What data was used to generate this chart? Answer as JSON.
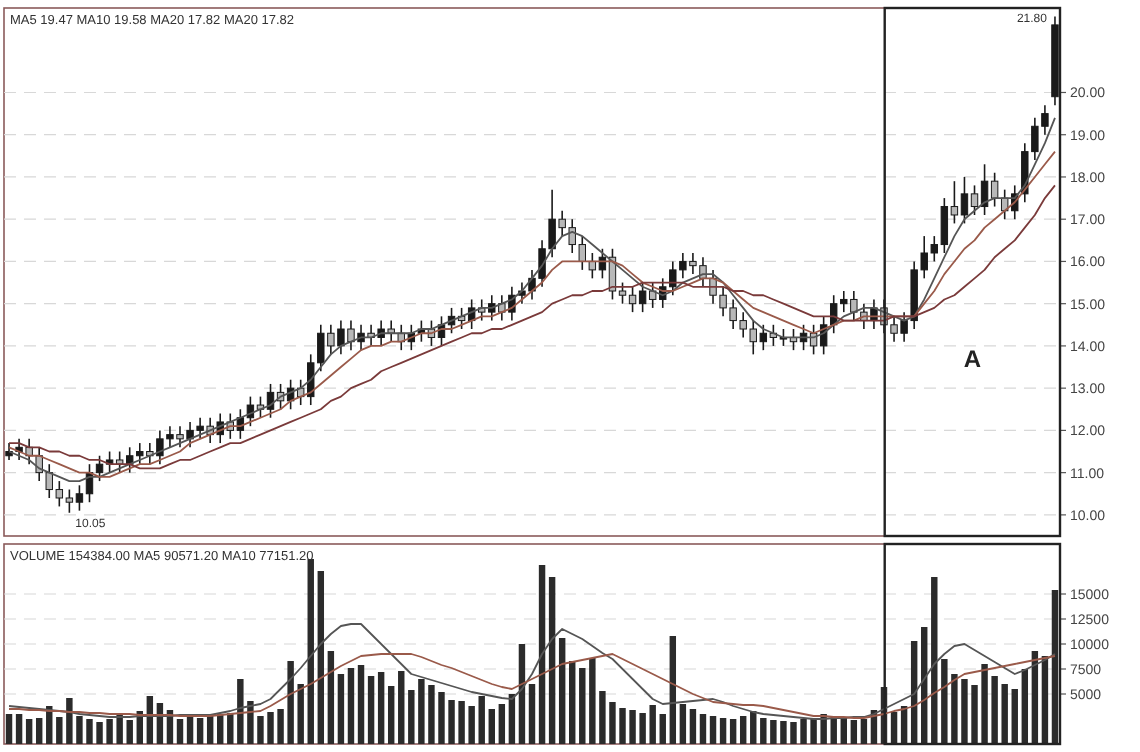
{
  "chart_data": [
    {
      "type": "candlestick",
      "title": "MA5 19.47  MA10 19.58  MA20 17.82  MA20 17.82",
      "tick_labels": "y",
      "grid": "y",
      "categories": [
        null,
        null,
        null,
        null,
        null,
        null,
        null,
        null,
        null,
        null,
        null,
        null,
        null,
        null,
        null,
        null,
        null,
        null,
        null,
        null,
        null,
        null,
        null,
        null,
        null,
        null,
        null,
        null,
        null,
        null,
        null,
        null,
        null,
        null,
        null,
        null,
        null,
        null,
        null,
        null,
        null,
        null,
        null,
        null,
        null,
        null,
        null,
        null,
        null,
        null,
        null,
        null,
        null,
        null,
        null,
        null,
        null,
        null,
        null,
        null,
        null,
        null,
        null,
        null,
        null,
        null,
        null,
        null,
        null,
        null,
        null,
        null,
        null,
        null,
        null,
        null,
        null,
        null,
        null,
        null,
        null,
        null,
        null,
        null,
        null,
        null,
        null,
        null,
        null,
        null,
        null,
        null,
        null,
        null,
        null,
        null,
        null,
        null,
        null,
        null,
        null,
        null,
        null,
        null,
        null
      ],
      "ylim": [
        9.5,
        22.0
      ],
      "yticks": [
        {
          "value": 10,
          "label": "10.00"
        },
        {
          "value": 11,
          "label": "11.00"
        },
        {
          "value": 12,
          "label": "12.00"
        },
        {
          "value": 13,
          "label": "13.00"
        },
        {
          "value": 14,
          "label": "14.00"
        },
        {
          "value": 15,
          "label": "15.00"
        },
        {
          "value": 16,
          "label": "16.00"
        },
        {
          "value": 17,
          "label": "17.00"
        },
        {
          "value": 18,
          "label": "18.00"
        },
        {
          "value": 19,
          "label": "19.00"
        },
        {
          "value": 20,
          "label": "20.00"
        }
      ],
      "ohlc": [
        [
          11.4,
          11.7,
          11.3,
          11.5
        ],
        [
          11.5,
          11.8,
          11.3,
          11.6
        ],
        [
          11.6,
          11.8,
          11.2,
          11.4
        ],
        [
          11.4,
          11.6,
          10.8,
          11.0
        ],
        [
          11.0,
          11.2,
          10.4,
          10.6
        ],
        [
          10.6,
          10.8,
          10.2,
          10.4
        ],
        [
          10.4,
          10.6,
          10.05,
          10.3
        ],
        [
          10.3,
          10.7,
          10.1,
          10.5
        ],
        [
          10.5,
          11.2,
          10.3,
          11.0
        ],
        [
          11.0,
          11.4,
          10.8,
          11.2
        ],
        [
          11.2,
          11.5,
          11.0,
          11.3
        ],
        [
          11.3,
          11.5,
          11.0,
          11.2
        ],
        [
          11.2,
          11.6,
          11.0,
          11.4
        ],
        [
          11.4,
          11.7,
          11.2,
          11.5
        ],
        [
          11.5,
          11.7,
          11.2,
          11.4
        ],
        [
          11.4,
          12.0,
          11.2,
          11.8
        ],
        [
          11.8,
          12.1,
          11.6,
          11.9
        ],
        [
          11.9,
          12.1,
          11.6,
          11.8
        ],
        [
          11.8,
          12.2,
          11.6,
          12.0
        ],
        [
          12.0,
          12.3,
          11.8,
          12.1
        ],
        [
          12.1,
          12.3,
          11.7,
          11.9
        ],
        [
          11.9,
          12.4,
          11.7,
          12.2
        ],
        [
          12.2,
          12.4,
          11.8,
          12.0
        ],
        [
          12.0,
          12.5,
          11.8,
          12.3
        ],
        [
          12.3,
          12.8,
          12.1,
          12.6
        ],
        [
          12.6,
          12.8,
          12.3,
          12.5
        ],
        [
          12.5,
          13.1,
          12.3,
          12.9
        ],
        [
          12.9,
          13.1,
          12.5,
          12.7
        ],
        [
          12.7,
          13.2,
          12.5,
          13.0
        ],
        [
          13.0,
          13.2,
          12.6,
          12.8
        ],
        [
          12.8,
          13.8,
          12.6,
          13.6
        ],
        [
          13.6,
          14.5,
          13.4,
          14.3
        ],
        [
          14.3,
          14.5,
          13.8,
          14.0
        ],
        [
          14.0,
          14.6,
          13.8,
          14.4
        ],
        [
          14.4,
          14.6,
          13.9,
          14.1
        ],
        [
          14.1,
          14.5,
          13.9,
          14.3
        ],
        [
          14.3,
          14.5,
          14.0,
          14.2
        ],
        [
          14.2,
          14.6,
          14.0,
          14.4
        ],
        [
          14.4,
          14.6,
          14.1,
          14.3
        ],
        [
          14.3,
          14.5,
          13.9,
          14.1
        ],
        [
          14.1,
          14.5,
          13.9,
          14.3
        ],
        [
          14.3,
          14.6,
          14.1,
          14.4
        ],
        [
          14.4,
          14.6,
          14.0,
          14.2
        ],
        [
          14.2,
          14.7,
          14.0,
          14.5
        ],
        [
          14.5,
          14.9,
          14.3,
          14.7
        ],
        [
          14.7,
          14.9,
          14.4,
          14.6
        ],
        [
          14.6,
          15.1,
          14.4,
          14.9
        ],
        [
          14.9,
          15.1,
          14.6,
          14.8
        ],
        [
          14.8,
          15.2,
          14.6,
          15.0
        ],
        [
          15.0,
          15.2,
          14.6,
          14.8
        ],
        [
          14.8,
          15.4,
          14.6,
          15.2
        ],
        [
          15.2,
          15.5,
          15.0,
          15.3
        ],
        [
          15.3,
          15.8,
          15.1,
          15.6
        ],
        [
          15.6,
          16.5,
          15.4,
          16.3
        ],
        [
          16.3,
          17.7,
          16.1,
          17.0
        ],
        [
          17.0,
          17.2,
          16.6,
          16.8
        ],
        [
          16.8,
          17.0,
          16.2,
          16.4
        ],
        [
          16.4,
          16.6,
          15.8,
          16.0
        ],
        [
          16.0,
          16.2,
          15.6,
          15.8
        ],
        [
          15.8,
          16.3,
          15.6,
          16.1
        ],
        [
          16.1,
          16.3,
          15.1,
          15.3
        ],
        [
          15.3,
          15.5,
          15.0,
          15.2
        ],
        [
          15.2,
          15.4,
          14.8,
          15.0
        ],
        [
          15.0,
          15.5,
          14.8,
          15.3
        ],
        [
          15.3,
          15.5,
          14.9,
          15.1
        ],
        [
          15.1,
          15.6,
          14.9,
          15.4
        ],
        [
          15.4,
          16.0,
          15.2,
          15.8
        ],
        [
          15.8,
          16.2,
          15.6,
          16.0
        ],
        [
          16.0,
          16.2,
          15.7,
          15.9
        ],
        [
          15.9,
          16.1,
          15.4,
          15.6
        ],
        [
          15.6,
          15.8,
          15.0,
          15.2
        ],
        [
          15.2,
          15.4,
          14.7,
          14.9
        ],
        [
          14.9,
          15.1,
          14.4,
          14.6
        ],
        [
          14.6,
          14.8,
          14.2,
          14.4
        ],
        [
          14.4,
          14.6,
          13.8,
          14.1
        ],
        [
          14.1,
          14.5,
          13.9,
          14.3
        ],
        [
          14.3,
          14.5,
          14.0,
          14.2
        ],
        [
          14.2,
          14.4,
          14.0,
          14.2
        ],
        [
          14.2,
          14.4,
          13.9,
          14.1
        ],
        [
          14.1,
          14.5,
          13.9,
          14.3
        ],
        [
          14.3,
          14.5,
          13.8,
          14.0
        ],
        [
          14.0,
          14.7,
          13.8,
          14.5
        ],
        [
          14.5,
          15.2,
          14.3,
          15.0
        ],
        [
          15.0,
          15.3,
          14.8,
          15.1
        ],
        [
          15.1,
          15.3,
          14.6,
          14.8
        ],
        [
          14.8,
          15.0,
          14.4,
          14.6
        ],
        [
          14.6,
          15.1,
          14.4,
          14.9
        ],
        [
          14.9,
          15.1,
          14.3,
          14.5
        ],
        [
          14.5,
          14.7,
          14.1,
          14.3
        ],
        [
          14.3,
          14.8,
          14.1,
          14.6
        ],
        [
          14.6,
          16.0,
          14.4,
          15.8
        ],
        [
          15.8,
          16.6,
          15.6,
          16.2
        ],
        [
          16.2,
          16.6,
          16.0,
          16.4
        ],
        [
          16.4,
          17.5,
          16.2,
          17.3
        ],
        [
          17.3,
          17.9,
          16.9,
          17.1
        ],
        [
          17.1,
          18.0,
          16.9,
          17.6
        ],
        [
          17.6,
          17.8,
          17.1,
          17.3
        ],
        [
          17.3,
          18.3,
          17.1,
          17.9
        ],
        [
          17.9,
          18.1,
          17.3,
          17.5
        ],
        [
          17.5,
          17.7,
          17.0,
          17.2
        ],
        [
          17.2,
          17.8,
          17.0,
          17.6
        ],
        [
          17.6,
          18.8,
          17.4,
          18.6
        ],
        [
          18.6,
          19.4,
          18.4,
          19.2
        ],
        [
          19.2,
          19.7,
          19.0,
          19.5
        ],
        [
          19.9,
          21.8,
          19.7,
          21.6
        ]
      ],
      "series": [
        {
          "type": "line",
          "color": "#555555",
          "values": [
            11.5,
            11.4,
            11.3,
            11.1,
            11.0,
            10.9,
            10.8,
            10.8,
            10.9,
            10.9,
            11.0,
            11.1,
            11.2,
            11.3,
            11.4,
            11.5,
            11.6,
            11.7,
            11.8,
            11.9,
            12.0,
            12.1,
            12.2,
            12.3,
            12.4,
            12.5,
            12.6,
            12.8,
            12.9,
            13.0,
            13.2,
            13.5,
            13.8,
            14.0,
            14.1,
            14.2,
            14.2,
            14.3,
            14.3,
            14.3,
            14.3,
            14.4,
            14.4,
            14.5,
            14.6,
            14.7,
            14.8,
            14.9,
            14.9,
            15.0,
            15.1,
            15.3,
            15.6,
            15.9,
            16.3,
            16.6,
            16.7,
            16.6,
            16.4,
            16.2,
            16.0,
            15.8,
            15.6,
            15.4,
            15.3,
            15.2,
            15.3,
            15.5,
            15.6,
            15.7,
            15.7,
            15.5,
            15.2,
            14.9,
            14.6,
            14.4,
            14.3,
            14.2,
            14.2,
            14.2,
            14.2,
            14.3,
            14.5,
            14.7,
            14.8,
            14.9,
            14.9,
            14.8,
            14.7,
            14.6,
            14.7,
            15.1,
            15.6,
            16.1,
            16.6,
            17.0,
            17.2,
            17.4,
            17.5,
            17.5,
            17.5,
            17.8,
            18.3,
            18.8,
            19.4
          ]
        },
        {
          "type": "line",
          "color": "#9a5a4a",
          "values": [
            11.6,
            11.5,
            11.4,
            11.4,
            11.3,
            11.2,
            11.1,
            11.0,
            11.0,
            10.9,
            10.9,
            11.0,
            11.1,
            11.2,
            11.2,
            11.3,
            11.4,
            11.5,
            11.7,
            11.8,
            11.9,
            12.0,
            12.1,
            12.1,
            12.2,
            12.3,
            12.4,
            12.5,
            12.7,
            12.8,
            12.9,
            13.1,
            13.3,
            13.5,
            13.7,
            13.9,
            14.0,
            14.0,
            14.1,
            14.1,
            14.2,
            14.3,
            14.3,
            14.4,
            14.4,
            14.5,
            14.6,
            14.7,
            14.7,
            14.8,
            14.9,
            15.1,
            15.3,
            15.5,
            15.8,
            16.0,
            16.0,
            16.0,
            16.0,
            16.0,
            16.0,
            15.9,
            15.7,
            15.5,
            15.4,
            15.3,
            15.3,
            15.4,
            15.5,
            15.6,
            15.6,
            15.5,
            15.3,
            15.1,
            14.9,
            14.8,
            14.7,
            14.6,
            14.5,
            14.4,
            14.3,
            14.4,
            14.5,
            14.6,
            14.6,
            14.7,
            14.7,
            14.7,
            14.7,
            14.7,
            14.7,
            15.0,
            15.3,
            15.7,
            16.0,
            16.3,
            16.5,
            16.8,
            17.0,
            17.2,
            17.4,
            17.7,
            18.0,
            18.3,
            18.6
          ]
        },
        {
          "type": "line",
          "color": "#7a3a3a",
          "values": [
            11.7,
            11.7,
            11.6,
            11.6,
            11.5,
            11.5,
            11.4,
            11.4,
            11.3,
            11.3,
            11.2,
            11.2,
            11.2,
            11.1,
            11.1,
            11.1,
            11.2,
            11.3,
            11.3,
            11.4,
            11.5,
            11.6,
            11.7,
            11.7,
            11.8,
            11.9,
            12.0,
            12.1,
            12.2,
            12.3,
            12.4,
            12.5,
            12.7,
            12.8,
            13.0,
            13.1,
            13.2,
            13.4,
            13.5,
            13.6,
            13.7,
            13.8,
            13.9,
            14.0,
            14.1,
            14.2,
            14.3,
            14.3,
            14.4,
            14.4,
            14.5,
            14.6,
            14.7,
            14.8,
            15.0,
            15.1,
            15.2,
            15.2,
            15.3,
            15.3,
            15.4,
            15.4,
            15.4,
            15.5,
            15.5,
            15.5,
            15.5,
            15.5,
            15.4,
            15.4,
            15.4,
            15.4,
            15.3,
            15.3,
            15.2,
            15.2,
            15.1,
            15.0,
            14.9,
            14.8,
            14.7,
            14.7,
            14.7,
            14.6,
            14.6,
            14.6,
            14.6,
            14.6,
            14.7,
            14.7,
            14.7,
            14.8,
            14.9,
            15.1,
            15.2,
            15.4,
            15.6,
            15.8,
            16.1,
            16.3,
            16.5,
            16.8,
            17.1,
            17.5,
            17.8
          ]
        }
      ],
      "annotations": [
        "21.80",
        "10.05",
        "A"
      ]
    },
    {
      "type": "bar",
      "title": "VOLUME 154384.00  MA5 90571.20  MA10 77151.20",
      "tick_labels": "y",
      "grid": "y",
      "categories": [
        null,
        null,
        null,
        null,
        null,
        null,
        null,
        null,
        null,
        null,
        null,
        null,
        null,
        null,
        null,
        null,
        null,
        null,
        null,
        null,
        null,
        null,
        null,
        null,
        null,
        null,
        null,
        null,
        null,
        null,
        null,
        null,
        null,
        null,
        null,
        null,
        null,
        null,
        null,
        null,
        null,
        null,
        null,
        null,
        null,
        null,
        null,
        null,
        null,
        null,
        null,
        null,
        null,
        null,
        null,
        null,
        null,
        null,
        null,
        null,
        null,
        null,
        null,
        null,
        null,
        null,
        null,
        null,
        null,
        null,
        null,
        null,
        null,
        null,
        null,
        null,
        null,
        null,
        null,
        null,
        null,
        null,
        null,
        null,
        null,
        null,
        null,
        null,
        null,
        null,
        null,
        null,
        null,
        null,
        null,
        null,
        null,
        null,
        null,
        null,
        null,
        null,
        null,
        null,
        null
      ],
      "ylim": [
        0,
        20000
      ],
      "yticks": [
        5000,
        7500,
        10000,
        12500,
        15000
      ],
      "series": [
        {
          "type": "bar",
          "color": "#2b2b2b",
          "values": [
            3000,
            3000,
            2500,
            2600,
            3800,
            2700,
            4600,
            2800,
            2500,
            2200,
            2500,
            3000,
            2400,
            3300,
            4800,
            4100,
            3400,
            2500,
            3000,
            2600,
            2800,
            3000,
            3100,
            6500,
            4300,
            2800,
            3200,
            3500,
            8300,
            6000,
            18500,
            17300,
            9300,
            7000,
            7600,
            7900,
            6800,
            7200,
            5800,
            7300,
            5400,
            6500,
            5900,
            5200,
            4400,
            4300,
            3800,
            4800,
            3500,
            4000,
            5000,
            10000,
            6000,
            17900,
            16700,
            10600,
            8300,
            7600,
            8600,
            5300,
            4200,
            3600,
            3400,
            3100,
            3900,
            3000,
            10800,
            4000,
            3500,
            3000,
            2800,
            2600,
            2500,
            2800,
            3300,
            2600,
            2400,
            2300,
            2200,
            2500,
            2600,
            3000,
            2800,
            2600,
            2400,
            2500,
            3400,
            5700,
            3200,
            3800,
            10300,
            11700,
            16700,
            8500,
            7000,
            6500,
            5900,
            8000,
            6800,
            6000,
            5500,
            7500,
            9300,
            8800,
            15400
          ]
        },
        {
          "type": "line",
          "color": "#555555",
          "values": [
            3800,
            3700,
            3600,
            3500,
            3400,
            3300,
            3200,
            3000,
            2900,
            2800,
            2700,
            2700,
            2700,
            2800,
            2800,
            2800,
            2800,
            2900,
            2900,
            2900,
            2900,
            3100,
            3300,
            3600,
            3800,
            4000,
            4500,
            5500,
            6500,
            7600,
            8800,
            10000,
            11000,
            11800,
            12000,
            12000,
            11000,
            10000,
            9000,
            8000,
            7000,
            6700,
            6400,
            6100,
            5800,
            5500,
            5200,
            5000,
            4800,
            4600,
            4500,
            5500,
            7000,
            9000,
            10500,
            11500,
            11000,
            10500,
            9800,
            9100,
            8500,
            7500,
            6500,
            5500,
            4500,
            4000,
            4100,
            4200,
            4300,
            4400,
            4500,
            4200,
            3800,
            3500,
            3200,
            3000,
            2900,
            2800,
            2700,
            2600,
            2500,
            2500,
            2600,
            2600,
            2700,
            2700,
            3000,
            3500,
            4000,
            4500,
            5000,
            6500,
            8000,
            9000,
            9800,
            10000,
            9400,
            8800,
            8200,
            7600,
            7000,
            7400,
            7900,
            8400,
            9000
          ]
        },
        {
          "type": "line",
          "color": "#9a5a4a",
          "values": [
            3500,
            3500,
            3400,
            3400,
            3300,
            3300,
            3200,
            3200,
            3100,
            3100,
            3000,
            3000,
            3000,
            2900,
            2900,
            2900,
            2900,
            2800,
            2800,
            2800,
            2800,
            2900,
            3000,
            3100,
            3200,
            3300,
            3800,
            4400,
            5000,
            5500,
            6000,
            6600,
            7200,
            7800,
            8300,
            8800,
            8900,
            9000,
            9000,
            9000,
            9000,
            8700,
            8300,
            7900,
            7600,
            7200,
            6800,
            6400,
            6000,
            5700,
            5500,
            6000,
            6500,
            7000,
            7500,
            8000,
            8200,
            8400,
            8600,
            8800,
            9000,
            8500,
            8000,
            7500,
            7000,
            6500,
            6000,
            5500,
            5000,
            4600,
            4200,
            4100,
            4000,
            3900,
            3900,
            3800,
            3600,
            3400,
            3200,
            3000,
            2800,
            2800,
            2700,
            2700,
            2600,
            2600,
            2800,
            3000,
            3300,
            3500,
            3800,
            4400,
            5100,
            5700,
            6400,
            7000,
            7200,
            7400,
            7600,
            7800,
            8000,
            8200,
            8400,
            8600,
            8800
          ]
        }
      ]
    }
  ]
}
